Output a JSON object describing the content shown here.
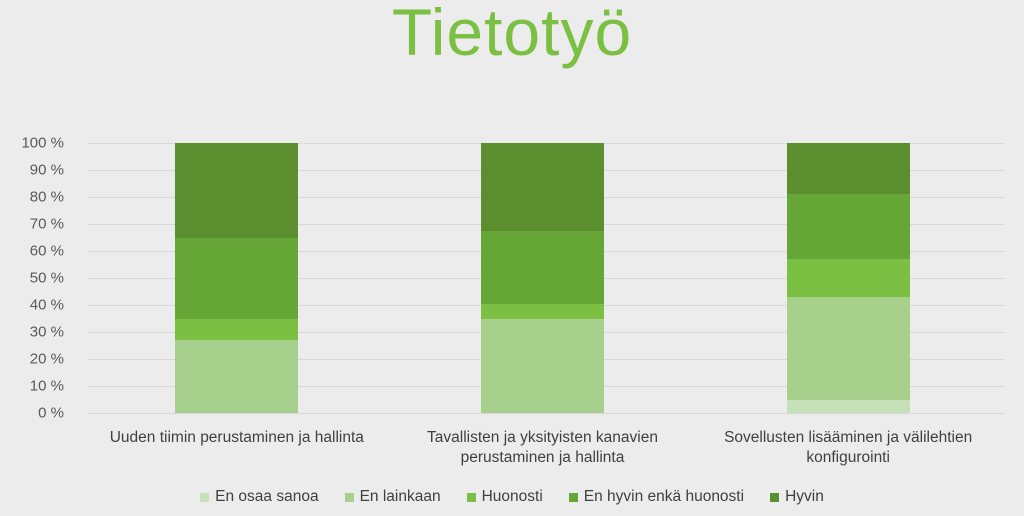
{
  "title": "Tietotyö",
  "chart_data": {
    "type": "bar",
    "stacked": true,
    "percent_stacked": true,
    "title": "Tietotyö",
    "xlabel": "",
    "ylabel": "",
    "ylim": [
      0,
      100
    ],
    "yticks": [
      "0 %",
      "10 %",
      "20 %",
      "30 %",
      "40 %",
      "50 %",
      "60 %",
      "70 %",
      "80 %",
      "90 %",
      "100 %"
    ],
    "grid": true,
    "legend_position": "bottom",
    "categories": [
      "Uuden tiimin perustaminen ja hallinta",
      "Tavallisten ja yksityisten kanavien perustaminen ja hallinta",
      "Sovellusten lisääminen ja välilehtien konfigurointi"
    ],
    "category_lines": [
      [
        "Uuden tiimin perustaminen ja hallinta"
      ],
      [
        "Tavallisten ja yksityisten kanavien",
        "perustaminen ja hallinta"
      ],
      [
        "Sovellusten lisääminen ja välilehtien",
        "konfigurointi"
      ]
    ],
    "series": [
      {
        "name": "En osaa sanoa",
        "color": "#c6e0b8",
        "values": [
          0,
          0,
          5
        ]
      },
      {
        "name": "En lainkaan",
        "color": "#a6d08c",
        "values": [
          27,
          35,
          38
        ]
      },
      {
        "name": "Huonosti",
        "color": "#7bc043",
        "values": [
          8,
          5.5,
          14
        ]
      },
      {
        "name": "En hyvin enkä huonosti",
        "color": "#66a636",
        "values": [
          30,
          27,
          24
        ]
      },
      {
        "name": "Hyvin",
        "color": "#5b8e2f",
        "values": [
          35,
          32.5,
          19
        ]
      }
    ]
  }
}
